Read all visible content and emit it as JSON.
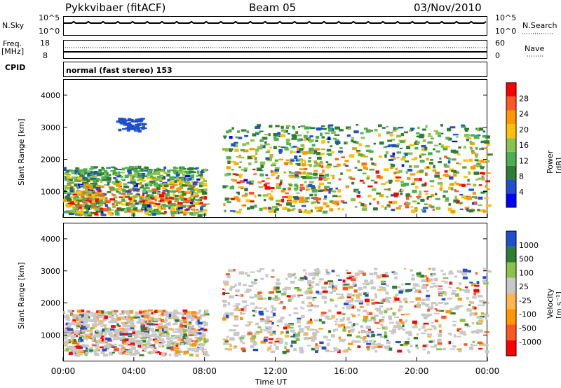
{
  "header": {
    "station": "Pykkvibaer (fitACF)",
    "beam": "Beam 05",
    "date": "03/Nov/2010"
  },
  "status_panels": {
    "nsky_label": "N.Sky",
    "nsky_ticks": [
      "10^5",
      "10^0"
    ],
    "nsearch_label": "N.Search",
    "nsearch_ticks": [
      "10^5",
      "10^0"
    ],
    "freq_label_top": "Freq.",
    "freq_label_bottom": "[MHz]",
    "freq_ticks": [
      "18",
      "8"
    ],
    "nave_label": "Nave",
    "nave_ticks": [
      "60",
      "0"
    ],
    "cpid_label": "CPID",
    "cpid_text": "normal (fast stereo) 153"
  },
  "chart_data": [
    {
      "type": "heatmap",
      "name": "power",
      "ylabel": "Slant Range [km]",
      "ylim": [
        180,
        4500
      ],
      "y_ticks": [
        "4000",
        "3000",
        "2000",
        "1000"
      ],
      "y_tick_values": [
        4000,
        3000,
        2000,
        1000
      ],
      "xlim_hours": [
        0,
        24
      ],
      "colorbar": {
        "label": "Power [dB]",
        "ticks": [
          "28",
          "24",
          "20",
          "16",
          "12",
          "8",
          "4"
        ],
        "colors": [
          "#0000ff",
          "#1f4fd0",
          "#2e7d32",
          "#4caf50",
          "#8bc34a",
          "#ffc107",
          "#ff9800",
          "#ff5722",
          "#ff0000"
        ]
      },
      "regions": [
        {
          "t0": 0.0,
          "t1": 8.0,
          "r0": 300,
          "r1": 1800,
          "level": "high"
        },
        {
          "t0": 9.0,
          "t1": 24.0,
          "r0": 400,
          "r1": 3100,
          "level": "high"
        },
        {
          "t0": 3.0,
          "t1": 4.5,
          "r0": 2900,
          "r1": 3300,
          "level": "low"
        }
      ]
    },
    {
      "type": "heatmap",
      "name": "velocity",
      "ylabel": "Slant Range [km]",
      "ylim": [
        180,
        4500
      ],
      "y_ticks": [
        "4000",
        "3000",
        "2000",
        "1000"
      ],
      "y_tick_values": [
        4000,
        3000,
        2000,
        1000
      ],
      "xlim_hours": [
        0,
        24
      ],
      "x_ticks": [
        "00:00",
        "04:00",
        "08:00",
        "12:00",
        "16:00",
        "20:00",
        "00:00"
      ],
      "x_tick_values": [
        0,
        4,
        8,
        12,
        16,
        20,
        24
      ],
      "xlabel": "Time UT",
      "colorbar": {
        "label": "Velocity [m s⁻¹]",
        "ticks": [
          "1000",
          "500",
          "100",
          "25",
          "-25",
          "-100",
          "-500",
          "-1000"
        ],
        "colors": [
          "#ff0000",
          "#ff5722",
          "#ff9800",
          "#ffb74d",
          "#c8c8c8",
          "#8bc34a",
          "#2e7d32",
          "#1f4fd0"
        ]
      },
      "regions": [
        {
          "t0": 0.0,
          "t1": 8.0,
          "r0": 400,
          "r1": 1800,
          "level": "mixed"
        },
        {
          "t0": 9.0,
          "t1": 24.0,
          "r0": 500,
          "r1": 3100,
          "level": "mixed"
        }
      ]
    }
  ]
}
